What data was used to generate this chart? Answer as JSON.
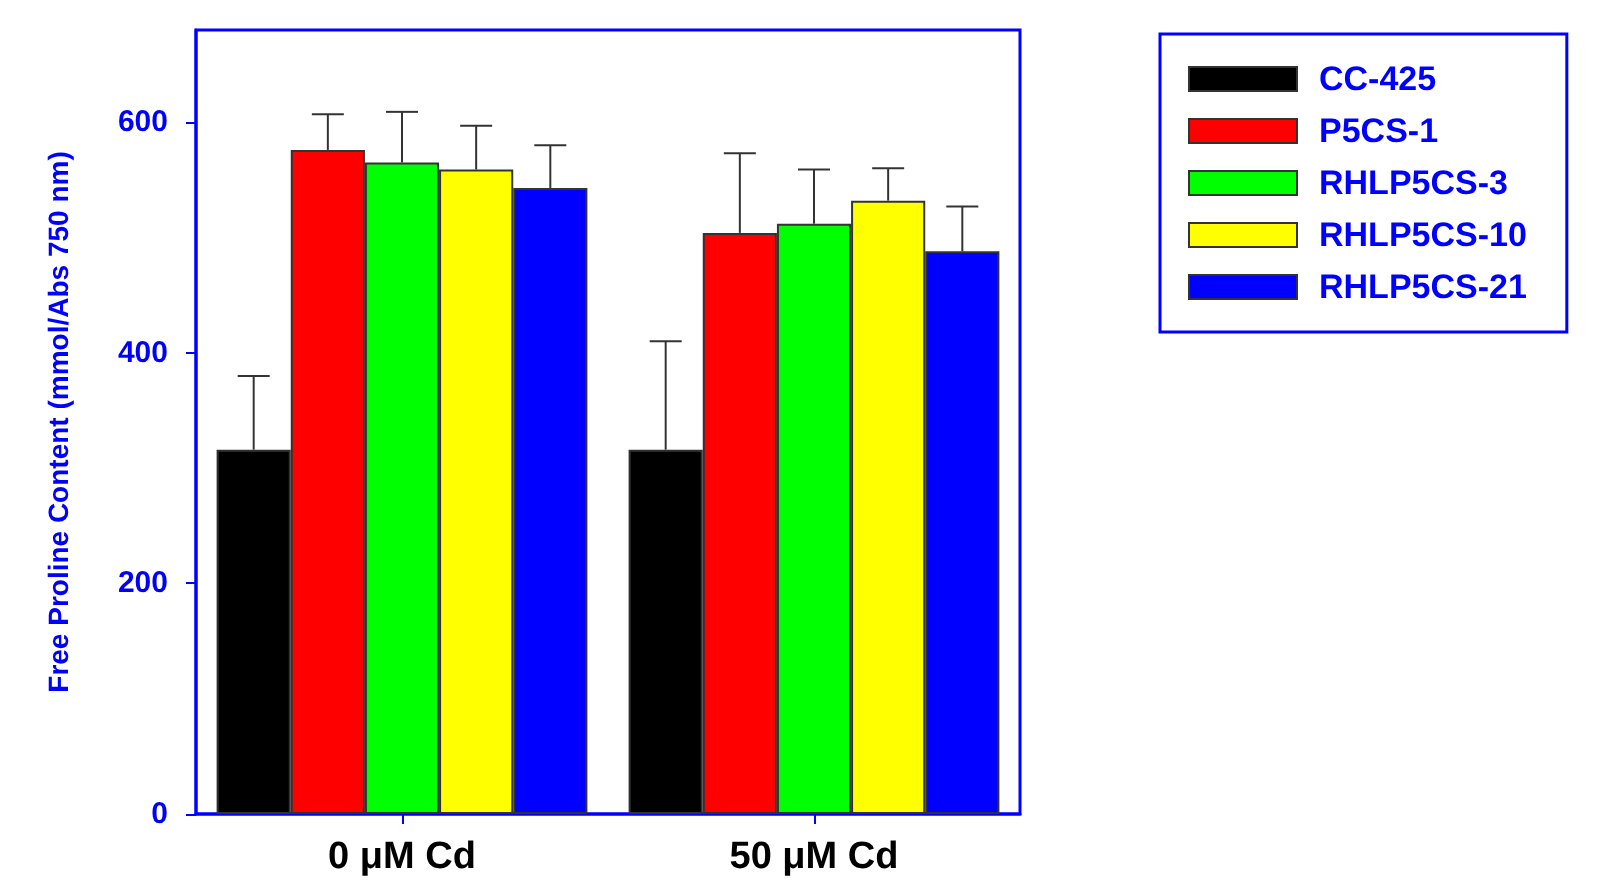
{
  "chart_data": {
    "type": "bar",
    "ylabel": "Free Proline Content (mmol/Abs 750 nm)",
    "categories": [
      "0 μM Cd",
      "50 μM Cd"
    ],
    "series": [
      {
        "name": "CC-425",
        "color": "#000000",
        "values": [
          316,
          316
        ],
        "errors": [
          [
            316,
            380
          ],
          [
            316,
            410
          ]
        ]
      },
      {
        "name": "P5CS-1",
        "color": "#ff0000",
        "values": [
          576,
          504
        ],
        "errors": [
          [
            576,
            607
          ],
          [
            504,
            573
          ]
        ]
      },
      {
        "name": "RHLP5CS-3",
        "color": "#00ff00",
        "values": [
          565,
          512
        ],
        "errors": [
          [
            565,
            609
          ],
          [
            512,
            559
          ]
        ]
      },
      {
        "name": "RHLP5CS-10",
        "color": "#ffff00",
        "values": [
          559,
          532
        ],
        "errors": [
          [
            559,
            597
          ],
          [
            532,
            560
          ]
        ]
      },
      {
        "name": "RHLP5CS-21",
        "color": "#0000ff",
        "values": [
          543,
          488
        ],
        "errors": [
          [
            543,
            580
          ],
          [
            488,
            527
          ]
        ]
      }
    ],
    "ylim": [
      0,
      680
    ],
    "yticks": [
      0,
      200,
      400,
      600
    ],
    "grid": false,
    "legend": "top right"
  }
}
